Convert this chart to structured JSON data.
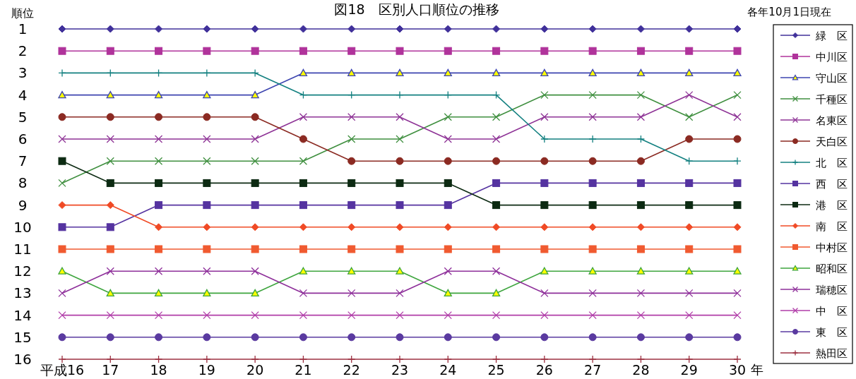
{
  "chart_data": {
    "type": "line",
    "title": "図18　区別人口順位の推移",
    "annotations": [
      "各年10月1日現在"
    ],
    "ylabel": "順位",
    "xlabel": "年",
    "x": [
      16,
      17,
      18,
      19,
      20,
      21,
      22,
      23,
      24,
      25,
      26,
      27,
      28,
      29,
      30
    ],
    "xlim": [
      16,
      30
    ],
    "ylim": [
      16,
      1
    ],
    "xticks": [
      {
        "value": 16,
        "label": "平成16"
      },
      17,
      18,
      19,
      20,
      21,
      22,
      23,
      24,
      25,
      26,
      27,
      28,
      29,
      30
    ],
    "yticks": [
      1,
      2,
      3,
      4,
      5,
      6,
      7,
      8,
      9,
      10,
      11,
      12,
      13,
      14,
      15,
      16
    ],
    "grid": false,
    "legend": "right",
    "line_style": "solid",
    "series": [
      {
        "name": "緑　区",
        "color": "#40309a",
        "marker": "diamond",
        "values": [
          1,
          1,
          1,
          1,
          1,
          1,
          1,
          1,
          1,
          1,
          1,
          1,
          1,
          1,
          1
        ]
      },
      {
        "name": "中川区",
        "color": "#b0339b",
        "marker": "square",
        "values": [
          2,
          2,
          2,
          2,
          2,
          2,
          2,
          2,
          2,
          2,
          2,
          2,
          2,
          2,
          2
        ]
      },
      {
        "name": "守山区",
        "color": "#3d45b0",
        "marker": "triangle",
        "values": [
          4,
          4,
          4,
          4,
          4,
          3,
          3,
          3,
          3,
          3,
          3,
          3,
          3,
          3,
          3
        ]
      },
      {
        "name": "千種区",
        "color": "#3f8f3f",
        "marker": "cross",
        "values": [
          8,
          7,
          7,
          7,
          7,
          7,
          6,
          6,
          5,
          5,
          4,
          4,
          4,
          5,
          4
        ]
      },
      {
        "name": "名東区",
        "color": "#8e3396",
        "marker": "cross",
        "values": [
          6,
          6,
          6,
          6,
          6,
          5,
          5,
          5,
          6,
          6,
          5,
          5,
          5,
          4,
          5
        ]
      },
      {
        "name": "天白区",
        "color": "#8b2a22",
        "marker": "circle",
        "values": [
          5,
          5,
          5,
          5,
          5,
          6,
          7,
          7,
          7,
          7,
          7,
          7,
          7,
          6,
          6
        ]
      },
      {
        "name": "北　区",
        "color": "#138080",
        "marker": "plus",
        "values": [
          3,
          3,
          3,
          3,
          3,
          4,
          4,
          4,
          4,
          4,
          6,
          6,
          6,
          7,
          7
        ]
      },
      {
        "name": "西　区",
        "color": "#5533a0",
        "marker": "square",
        "values": [
          10,
          10,
          9,
          9,
          9,
          9,
          9,
          9,
          9,
          8,
          8,
          8,
          8,
          8,
          8
        ]
      },
      {
        "name": "港　区",
        "color": "#0c2a12",
        "marker": "square",
        "values": [
          7,
          8,
          8,
          8,
          8,
          8,
          8,
          8,
          8,
          9,
          9,
          9,
          9,
          9,
          9
        ]
      },
      {
        "name": "南　区",
        "color": "#f04a25",
        "marker": "diamond",
        "values": [
          9,
          9,
          10,
          10,
          10,
          10,
          10,
          10,
          10,
          10,
          10,
          10,
          10,
          10,
          10
        ]
      },
      {
        "name": "中村区",
        "color": "#f05a30",
        "marker": "square",
        "values": [
          11,
          11,
          11,
          11,
          11,
          11,
          11,
          11,
          11,
          11,
          11,
          11,
          11,
          11,
          11
        ]
      },
      {
        "name": "昭和区",
        "color": "#3ea53e",
        "marker": "triangle",
        "values": [
          12,
          13,
          13,
          13,
          13,
          12,
          12,
          12,
          13,
          13,
          12,
          12,
          12,
          12,
          12
        ]
      },
      {
        "name": "瑞穂区",
        "color": "#8e2f9a",
        "marker": "cross",
        "values": [
          13,
          12,
          12,
          12,
          12,
          13,
          13,
          13,
          12,
          12,
          13,
          13,
          13,
          13,
          13
        ]
      },
      {
        "name": "中　区",
        "color": "#b03ca8",
        "marker": "cross",
        "values": [
          14,
          14,
          14,
          14,
          14,
          14,
          14,
          14,
          14,
          14,
          14,
          14,
          14,
          14,
          14
        ]
      },
      {
        "name": "東　区",
        "color": "#5a3aa0",
        "marker": "circle",
        "values": [
          15,
          15,
          15,
          15,
          15,
          15,
          15,
          15,
          15,
          15,
          15,
          15,
          15,
          15,
          15
        ]
      },
      {
        "name": "熱田区",
        "color": "#9c3040",
        "marker": "plus",
        "values": [
          16,
          16,
          16,
          16,
          16,
          16,
          16,
          16,
          16,
          16,
          16,
          16,
          16,
          16,
          16
        ]
      }
    ]
  }
}
